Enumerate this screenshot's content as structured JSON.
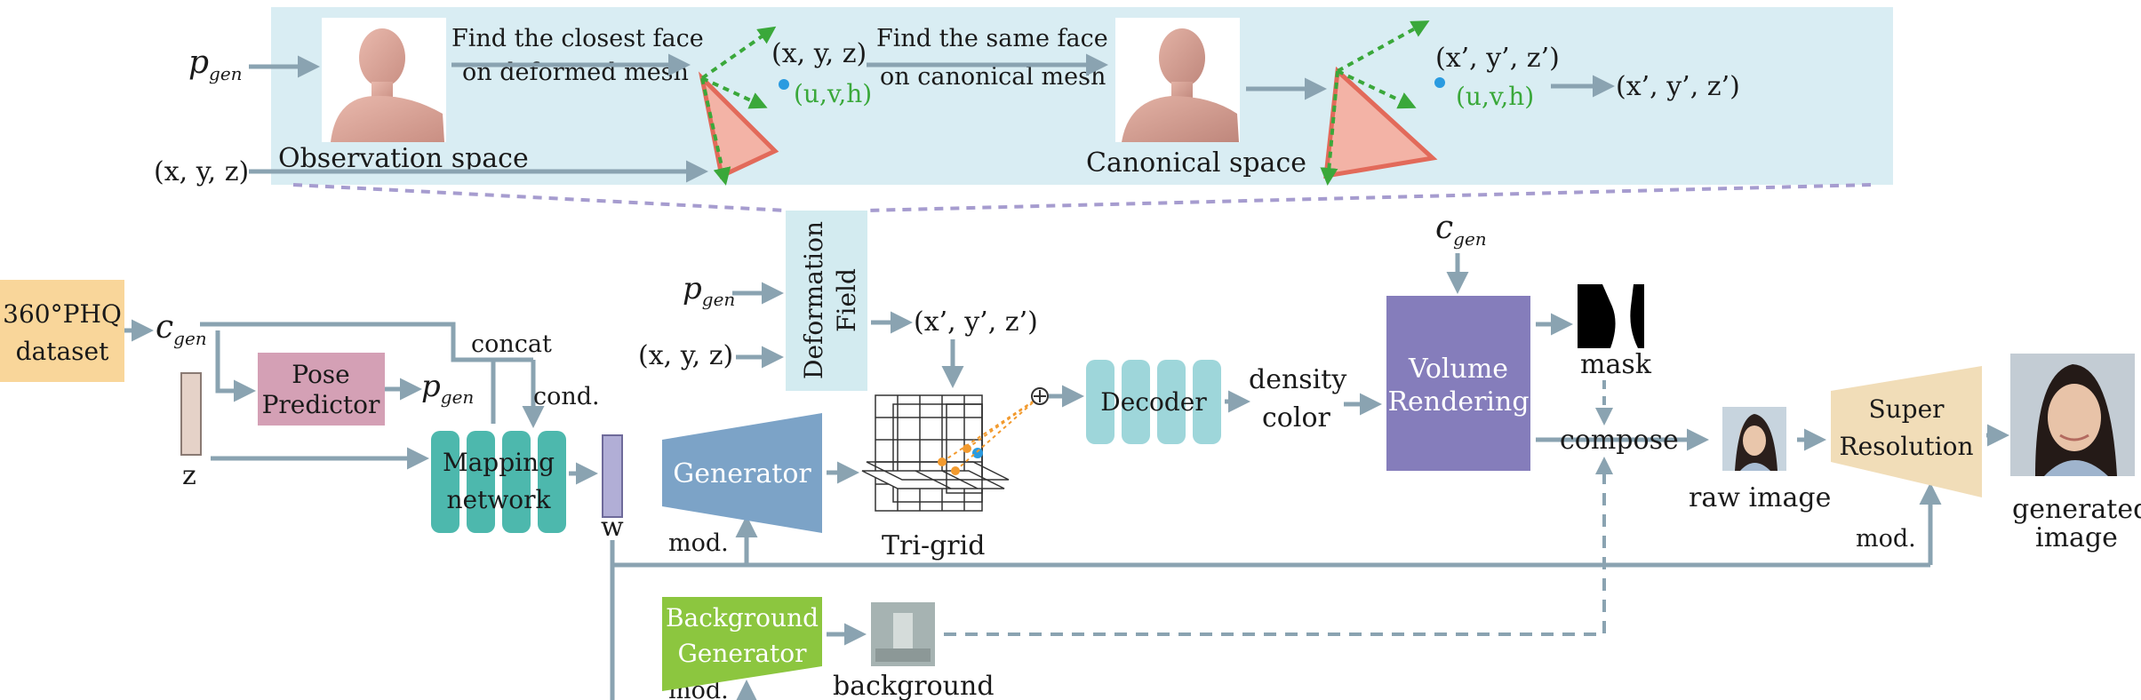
{
  "top_panel": {
    "observation_space": "Observation space",
    "canonical_space": "Canonical space",
    "find_closest_line1": "Find the closest face",
    "find_closest_line2": "on deformed mesh",
    "find_same_line1": "Find the same face",
    "find_same_line2": "on canonical mesh",
    "xyz": "(x, y, z)",
    "uvh": "(u,v,h)",
    "xyz_prime": "(x’, y’, z’)",
    "uvh2": "(u,v,h)",
    "out_xyz_prime": "(x’, y’, z’)",
    "in_p": "p",
    "in_p_sub": "gen",
    "in_xyz": "(x, y, z)"
  },
  "pipeline": {
    "dataset_line1": "360°PHQ",
    "dataset_line2": "dataset",
    "c": "c",
    "c_sub": "gen",
    "z": "z",
    "pose_line1": "Pose",
    "pose_line2": "Predictor",
    "p": "p",
    "p_sub": "gen",
    "concat": "concat",
    "cond": "cond.",
    "mapping_line1": "Mapping",
    "mapping_line2": "network",
    "w": "w",
    "deformation_line1": "Deformation",
    "deformation_line2": "Field",
    "def_p": "p",
    "def_p_sub": "gen",
    "def_xyz": "(x, y, z)",
    "def_out": "(x’, y’, z’)",
    "generator": "Generator",
    "mod1": "mod.",
    "trigrid": "Tri-grid",
    "decoder": "Decoder",
    "density": "density",
    "color": "color",
    "vr_c": "c",
    "vr_c_sub": "gen",
    "vr_line1": "Volume",
    "vr_line2": "Rendering",
    "mask": "mask",
    "compose": "compose",
    "raw_image": "raw image",
    "sr_line1": "Super",
    "sr_line2": "Resolution",
    "mod2": "mod.",
    "generated_line1": "generated",
    "generated_line2": "image",
    "bg_line1": "Background",
    "bg_line2": "Generator",
    "background": "background",
    "mod3": "mod."
  },
  "colors": {
    "top_panel_bg": "#d9edf3",
    "arrow": "#8aa3b1",
    "dataset": "#f9d69a",
    "pose": "#d4a0b5",
    "mapping": "#4db8ad",
    "w_bar": "#b1aed6",
    "deformation": "#d3ebf0",
    "generator": "#7ca3c7",
    "decoder": "#9ed6da",
    "volume": "#857dbb",
    "super_res": "#f1ddb8",
    "background_gen": "#8cc63f",
    "triangle_fill": "#f3b3a6",
    "triangle_stroke": "#e26a5a",
    "green_arrow": "#3aa83a",
    "point": "#2a9be0",
    "dashed": "#a69ccf"
  },
  "icons": [
    "human-mesh-icon",
    "portrait-image",
    "mask-image",
    "background-image"
  ]
}
